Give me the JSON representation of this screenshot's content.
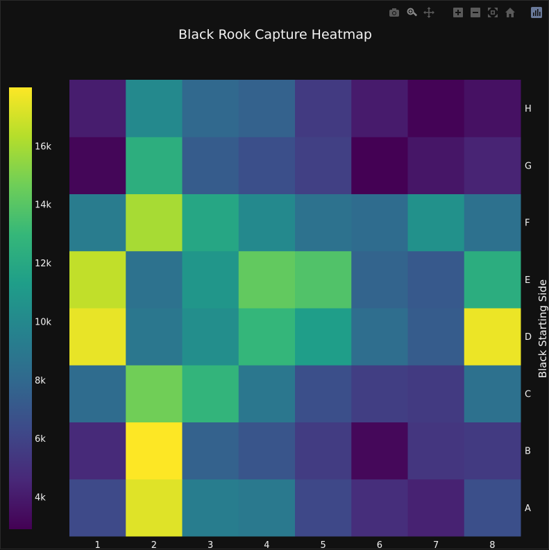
{
  "chart_data": {
    "type": "heatmap",
    "title": "Black Rook Capture Heatmap",
    "xlabel": "",
    "ylabel": "Black Starting Side",
    "x": [
      "1",
      "2",
      "3",
      "4",
      "5",
      "6",
      "7",
      "8"
    ],
    "y": [
      "A",
      "B",
      "C",
      "D",
      "E",
      "F",
      "G",
      "H"
    ],
    "z": [
      [
        6300,
        17300,
        9300,
        9000,
        6200,
        4900,
        4300,
        6600
      ],
      [
        4700,
        18000,
        7600,
        6900,
        5600,
        3200,
        5300,
        5500
      ],
      [
        8200,
        14700,
        12800,
        8900,
        6600,
        5700,
        5500,
        8500
      ],
      [
        17500,
        8900,
        10300,
        12900,
        11300,
        8300,
        7300,
        17600
      ],
      [
        16600,
        8600,
        10800,
        14300,
        13800,
        7700,
        7100,
        12300
      ],
      [
        9200,
        16000,
        11800,
        10000,
        8600,
        8200,
        10500,
        8500
      ],
      [
        3100,
        12400,
        7300,
        6600,
        5800,
        2900,
        3800,
        4400
      ],
      [
        4100,
        10000,
        8000,
        7600,
        5500,
        4000,
        3000,
        3600
      ]
    ],
    "zmin": 2900,
    "zmax": 18000,
    "colorscale": "Viridis",
    "colorbar": {
      "placement": "left",
      "tickvals": [
        4000,
        6000,
        8000,
        10000,
        12000,
        14000,
        16000
      ],
      "ticktext": [
        "4k",
        "6k",
        "8k",
        "10k",
        "12k",
        "14k",
        "16k"
      ]
    },
    "yaxis_side": "right",
    "grid": false
  },
  "colors": {
    "background": "#111111",
    "text": "#f2f2f2"
  },
  "modebar": {
    "icons": [
      "camera-icon",
      "zoom-icon",
      "pan-icon",
      "zoom-in-icon",
      "zoom-out-icon",
      "autoscale-icon",
      "home-icon",
      "plotly-logo-icon"
    ]
  }
}
